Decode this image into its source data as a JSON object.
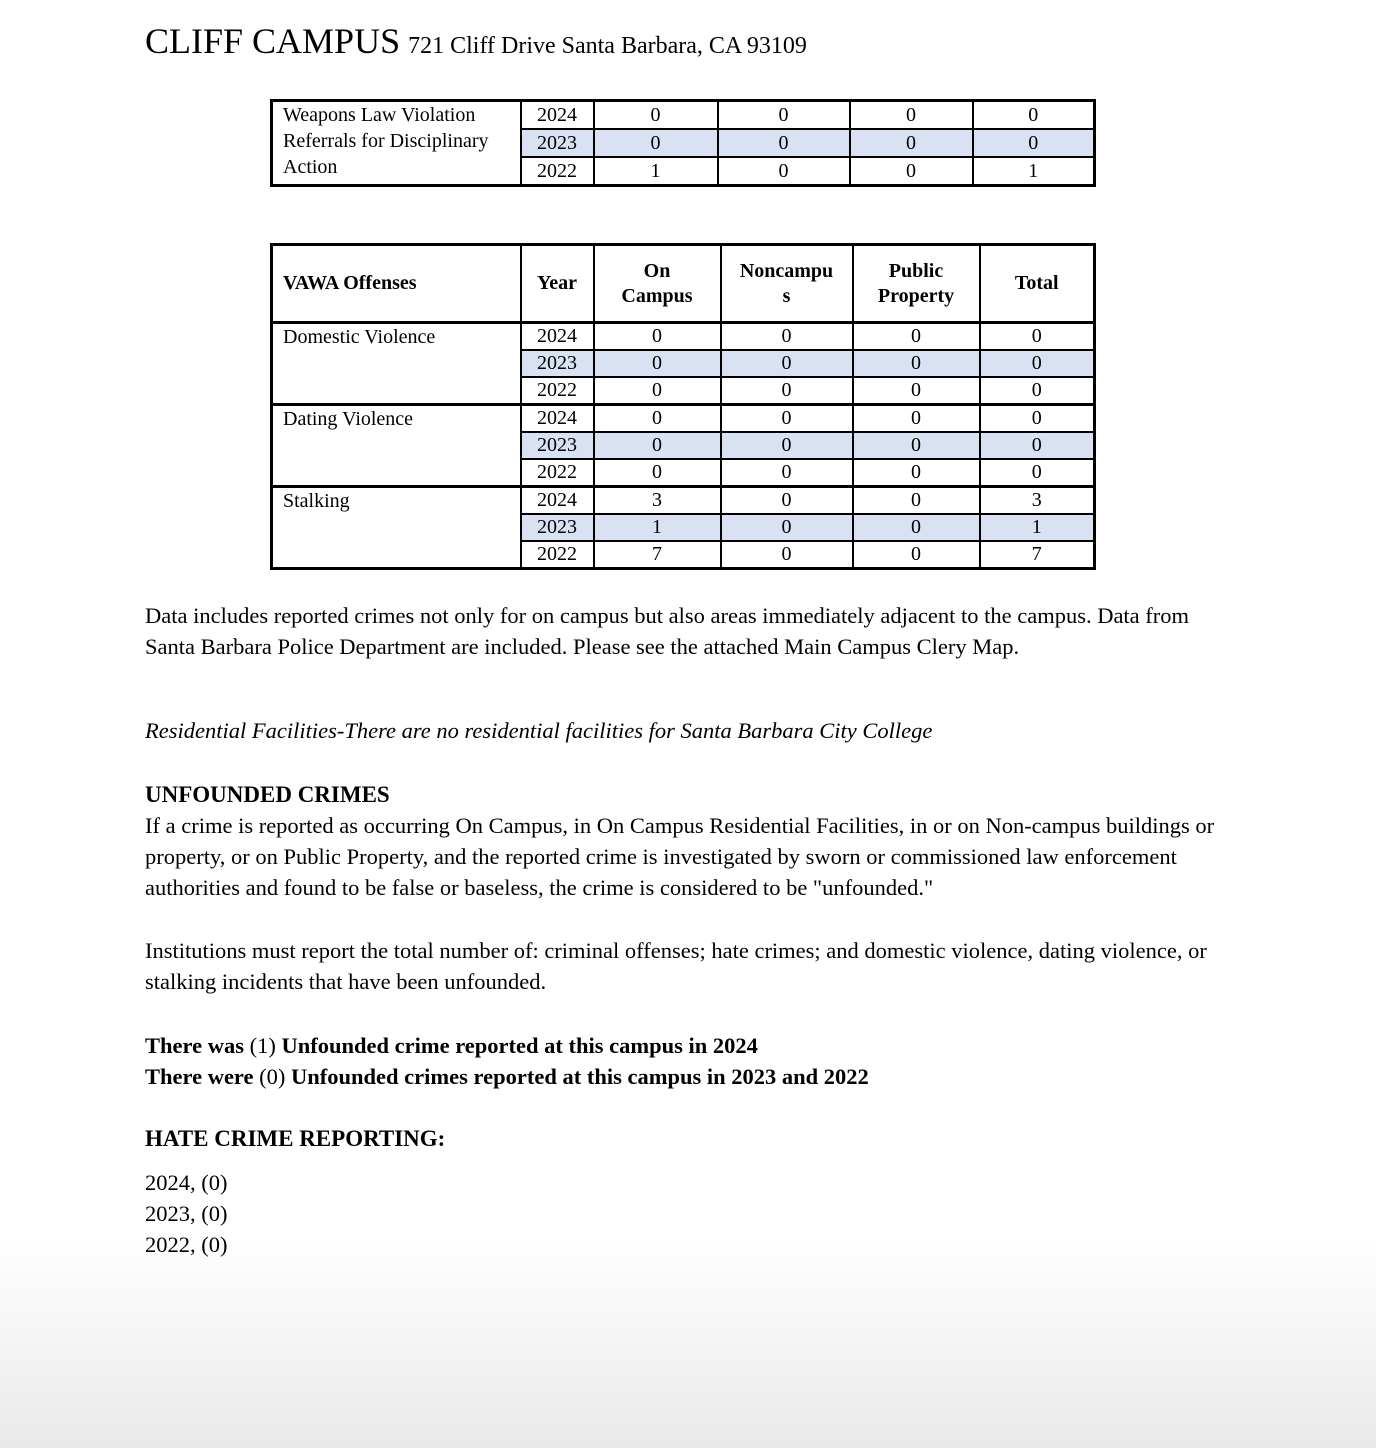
{
  "header": {
    "title": "CLIFF CAMPUS",
    "address": "721 Cliff Drive Santa Barbara, CA 93109"
  },
  "weapons_table": {
    "label": "Weapons Law Violation Referrals for Disciplinary Action",
    "rows": [
      {
        "year": "2024",
        "values": [
          "0",
          "0",
          "0",
          "0"
        ],
        "shaded": false
      },
      {
        "year": "2023",
        "values": [
          "0",
          "0",
          "0",
          "0"
        ],
        "shaded": true
      },
      {
        "year": "2022",
        "values": [
          "1",
          "0",
          "0",
          "1"
        ],
        "shaded": false
      }
    ]
  },
  "vawa_table": {
    "headers": [
      "VAWA Offenses",
      "Year",
      "On Campus",
      "Noncampus",
      "Public Property",
      "Total"
    ],
    "groups": [
      {
        "offense": "Domestic Violence",
        "rows": [
          {
            "year": "2024",
            "values": [
              "0",
              "0",
              "0",
              "0"
            ],
            "shaded": false
          },
          {
            "year": "2023",
            "values": [
              "0",
              "0",
              "0",
              "0"
            ],
            "shaded": true
          },
          {
            "year": "2022",
            "values": [
              "0",
              "0",
              "0",
              "0"
            ],
            "shaded": false
          }
        ]
      },
      {
        "offense": "Dating Violence",
        "rows": [
          {
            "year": "2024",
            "values": [
              "0",
              "0",
              "0",
              "0"
            ],
            "shaded": false
          },
          {
            "year": "2023",
            "values": [
              "0",
              "0",
              "0",
              "0"
            ],
            "shaded": true
          },
          {
            "year": "2022",
            "values": [
              "0",
              "0",
              "0",
              "0"
            ],
            "shaded": false
          }
        ]
      },
      {
        "offense": "Stalking",
        "rows": [
          {
            "year": "2024",
            "values": [
              "3",
              "0",
              "0",
              "3"
            ],
            "shaded": false
          },
          {
            "year": "2023",
            "values": [
              "1",
              "0",
              "0",
              "1"
            ],
            "shaded": true
          },
          {
            "year": "2022",
            "values": [
              "7",
              "0",
              "0",
              "7"
            ],
            "shaded": false
          }
        ]
      }
    ]
  },
  "notes": {
    "data_note": "Data includes reported crimes not only for on campus but also areas immediately adjacent to the campus. Data from Santa Barbara Police Department are included.  Please see the attached Main Campus Clery Map.",
    "residential": "Residential Facilities-There are no residential facilities for Santa Barbara City College"
  },
  "unfounded": {
    "heading": "UNFOUNDED CRIMES",
    "definition": "If a crime is reported as occurring On Campus, in On Campus Residential Facilities, in or on Non-campus buildings or property, or on Public Property, and the reported crime is investigated by sworn or commissioned law enforcement authorities and found to be false or baseless, the crime is considered to be \"unfounded.\"",
    "must_report": "Institutions must report the total number of: criminal offenses; hate crimes; and domestic violence, dating violence, or stalking incidents that have been unfounded.",
    "line_2024": {
      "prefix": "There was",
      "count": "(1)",
      "suffix": "Unfounded crime reported at this campus in 2024"
    },
    "line_prior": {
      "prefix": "There were",
      "count": "(0)",
      "suffix": "Unfounded crimes reported at this campus in 2023 and 2022"
    }
  },
  "hate_crime": {
    "heading": "HATE CRIME REPORTING:",
    "lines": [
      "2024, (0)",
      "2023, (0)",
      "2022, (0)"
    ]
  },
  "colors": {
    "shaded_row": "#d9e2f3",
    "border": "#000000"
  }
}
